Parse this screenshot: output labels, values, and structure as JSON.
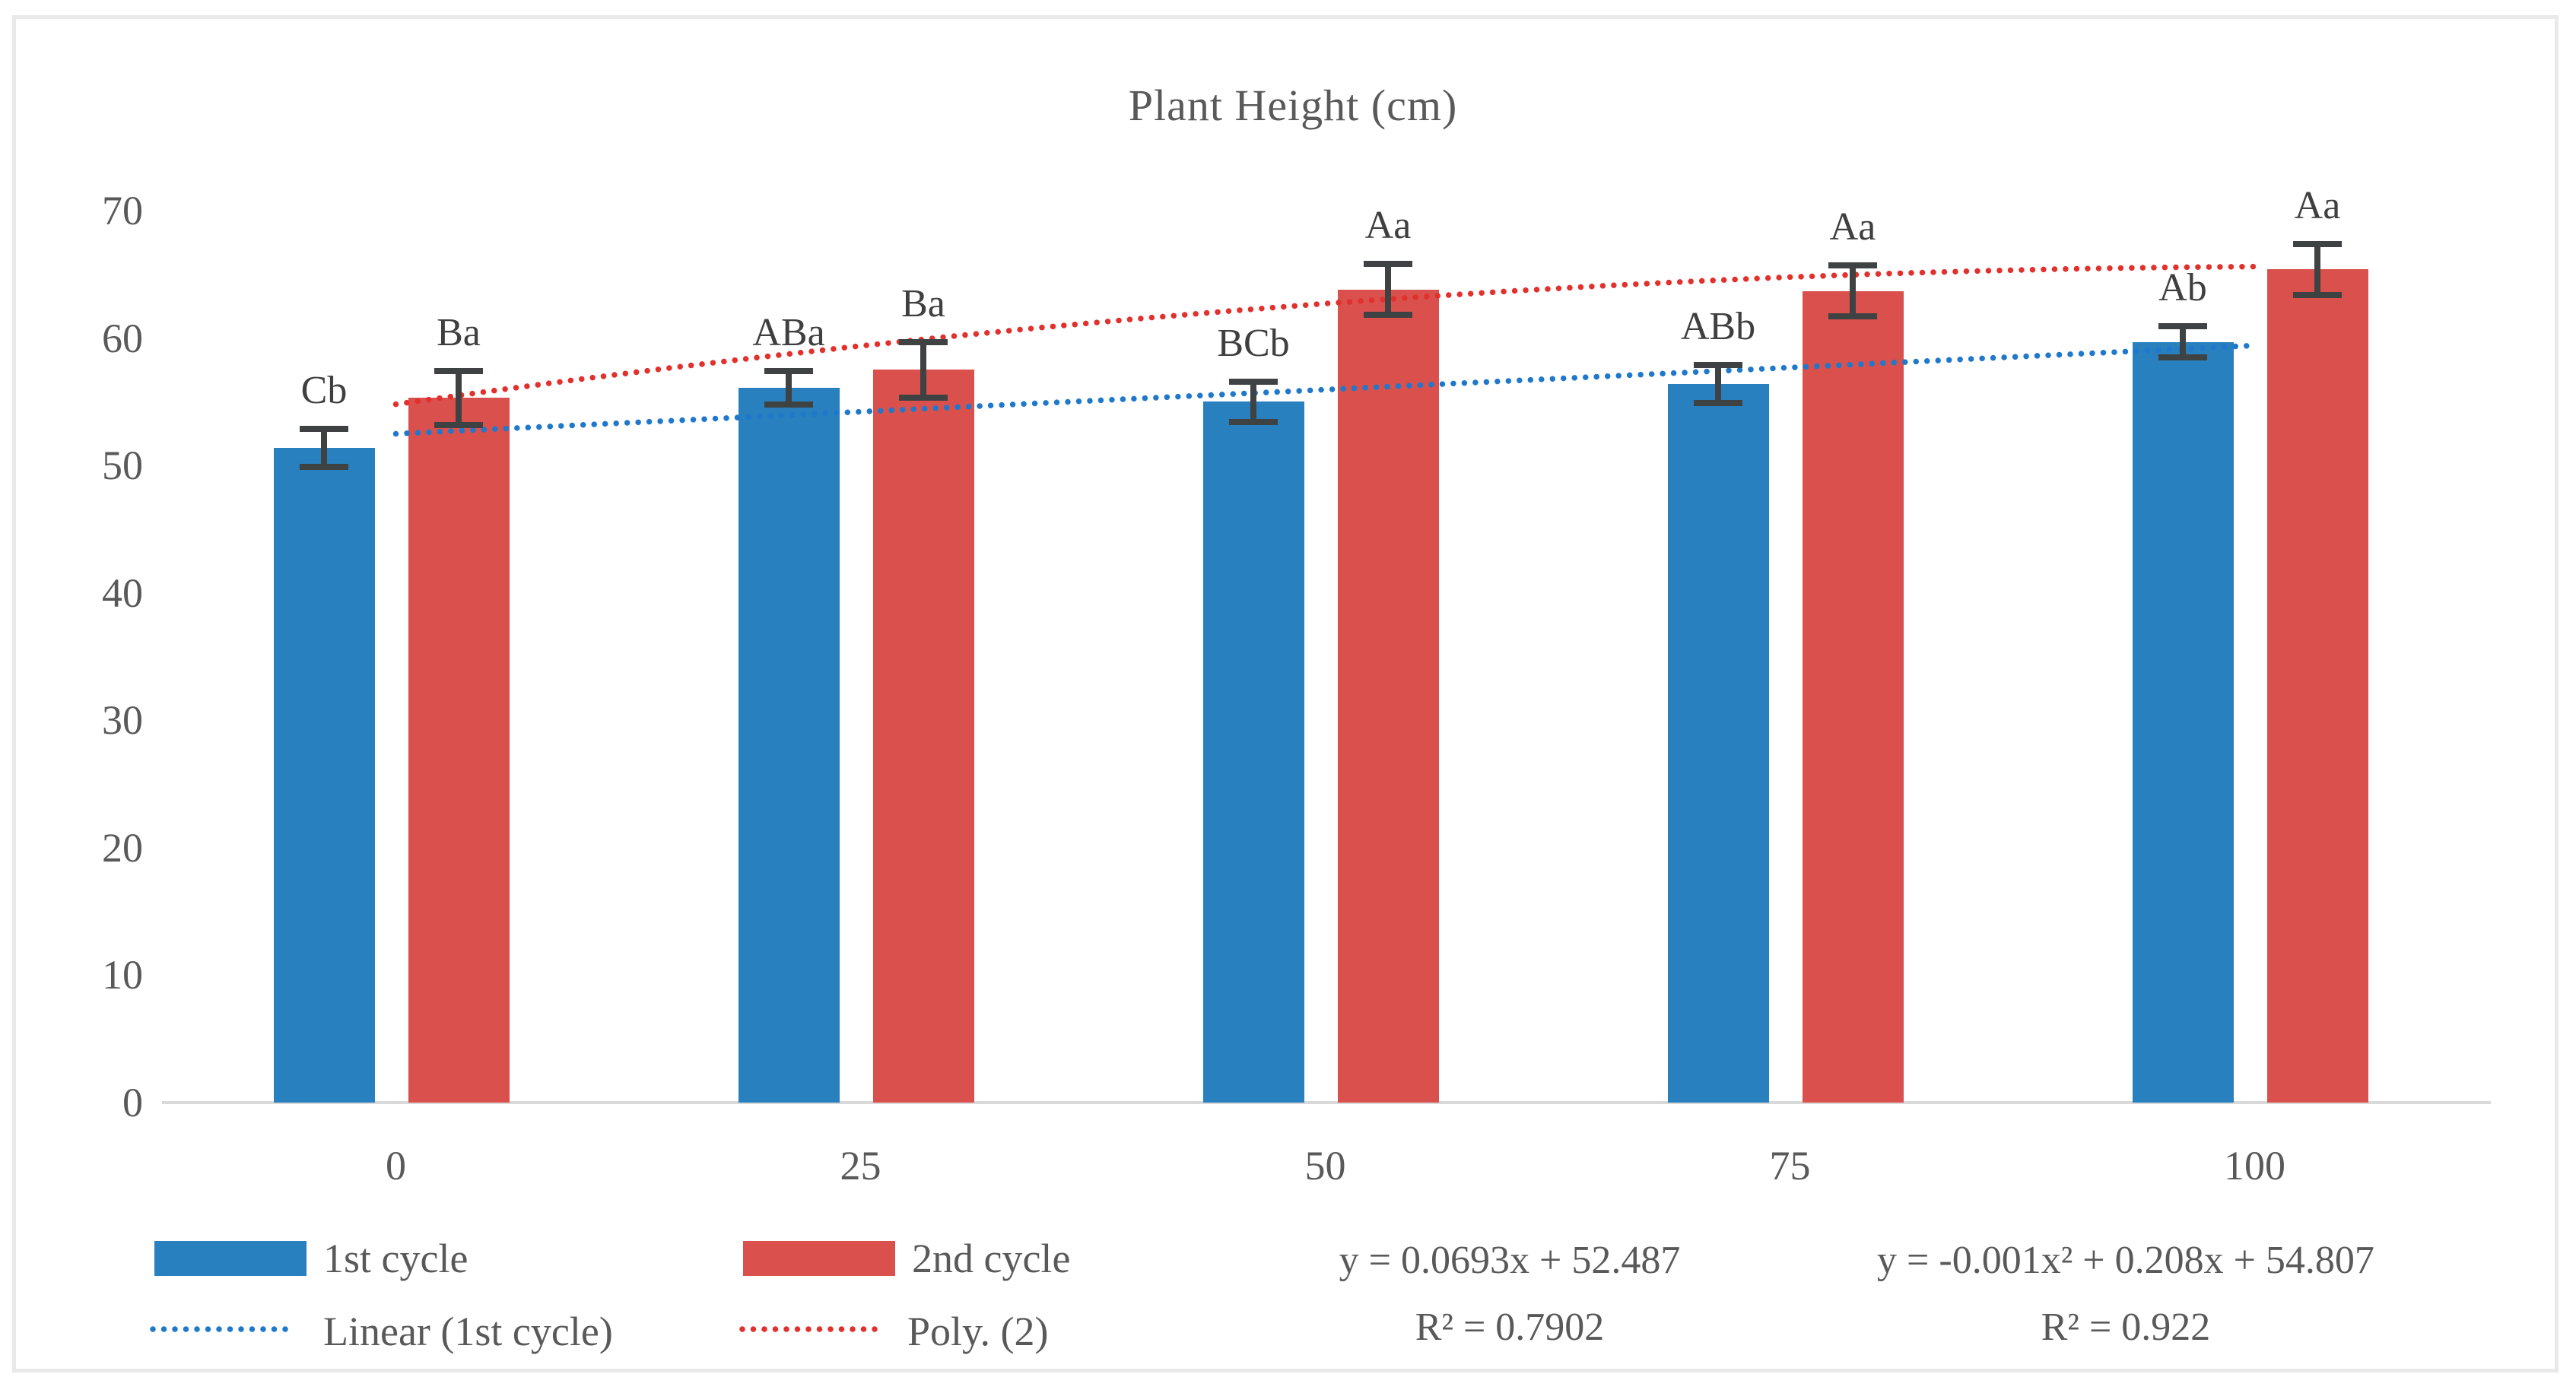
{
  "chart_data": {
    "type": "bar",
    "title": "Plant Height (cm)",
    "categories": [
      "0",
      "25",
      "50",
      "75",
      "100"
    ],
    "series": [
      {
        "name": "1st cycle",
        "color": "#2880be",
        "values": [
          51.4,
          56.1,
          55.0,
          56.4,
          59.7
        ],
        "errors": [
          1.5,
          1.3,
          1.6,
          1.5,
          1.2
        ],
        "bar_labels": [
          "Cb",
          "ABa",
          "BCb",
          "ABb",
          "Ab"
        ]
      },
      {
        "name": "2nd cycle",
        "color": "#d9504c",
        "values": [
          55.3,
          57.5,
          63.8,
          63.7,
          65.4
        ],
        "errors": [
          2.1,
          2.2,
          2.0,
          2.0,
          2.0
        ],
        "bar_labels": [
          "Ba",
          "Ba",
          "Aa",
          "Aa",
          "Aa"
        ]
      }
    ],
    "trendlines": [
      {
        "name": "Linear (1st cycle)",
        "type": "linear",
        "color": "#1f78cc",
        "coeffs": [
          0.0693,
          52.487
        ],
        "equation": "y = 0.0693x + 52.487",
        "r_squared": "R² = 0.7902"
      },
      {
        "name": "Poly. (2)",
        "type": "poly2",
        "color": "#e2312d",
        "coeffs": [
          -0.001,
          0.208,
          54.807
        ],
        "equation": "y = -0.001x² + 0.208x + 54.807",
        "r_squared": "R² = 0.922"
      }
    ],
    "ylim": [
      0,
      70
    ],
    "yticks": [
      0,
      10,
      20,
      30,
      40,
      50,
      60,
      70
    ],
    "grid": false,
    "legend_position": "bottom",
    "error_bar_color": "#3f4242",
    "axis_line_color": "#d9d9d9"
  }
}
